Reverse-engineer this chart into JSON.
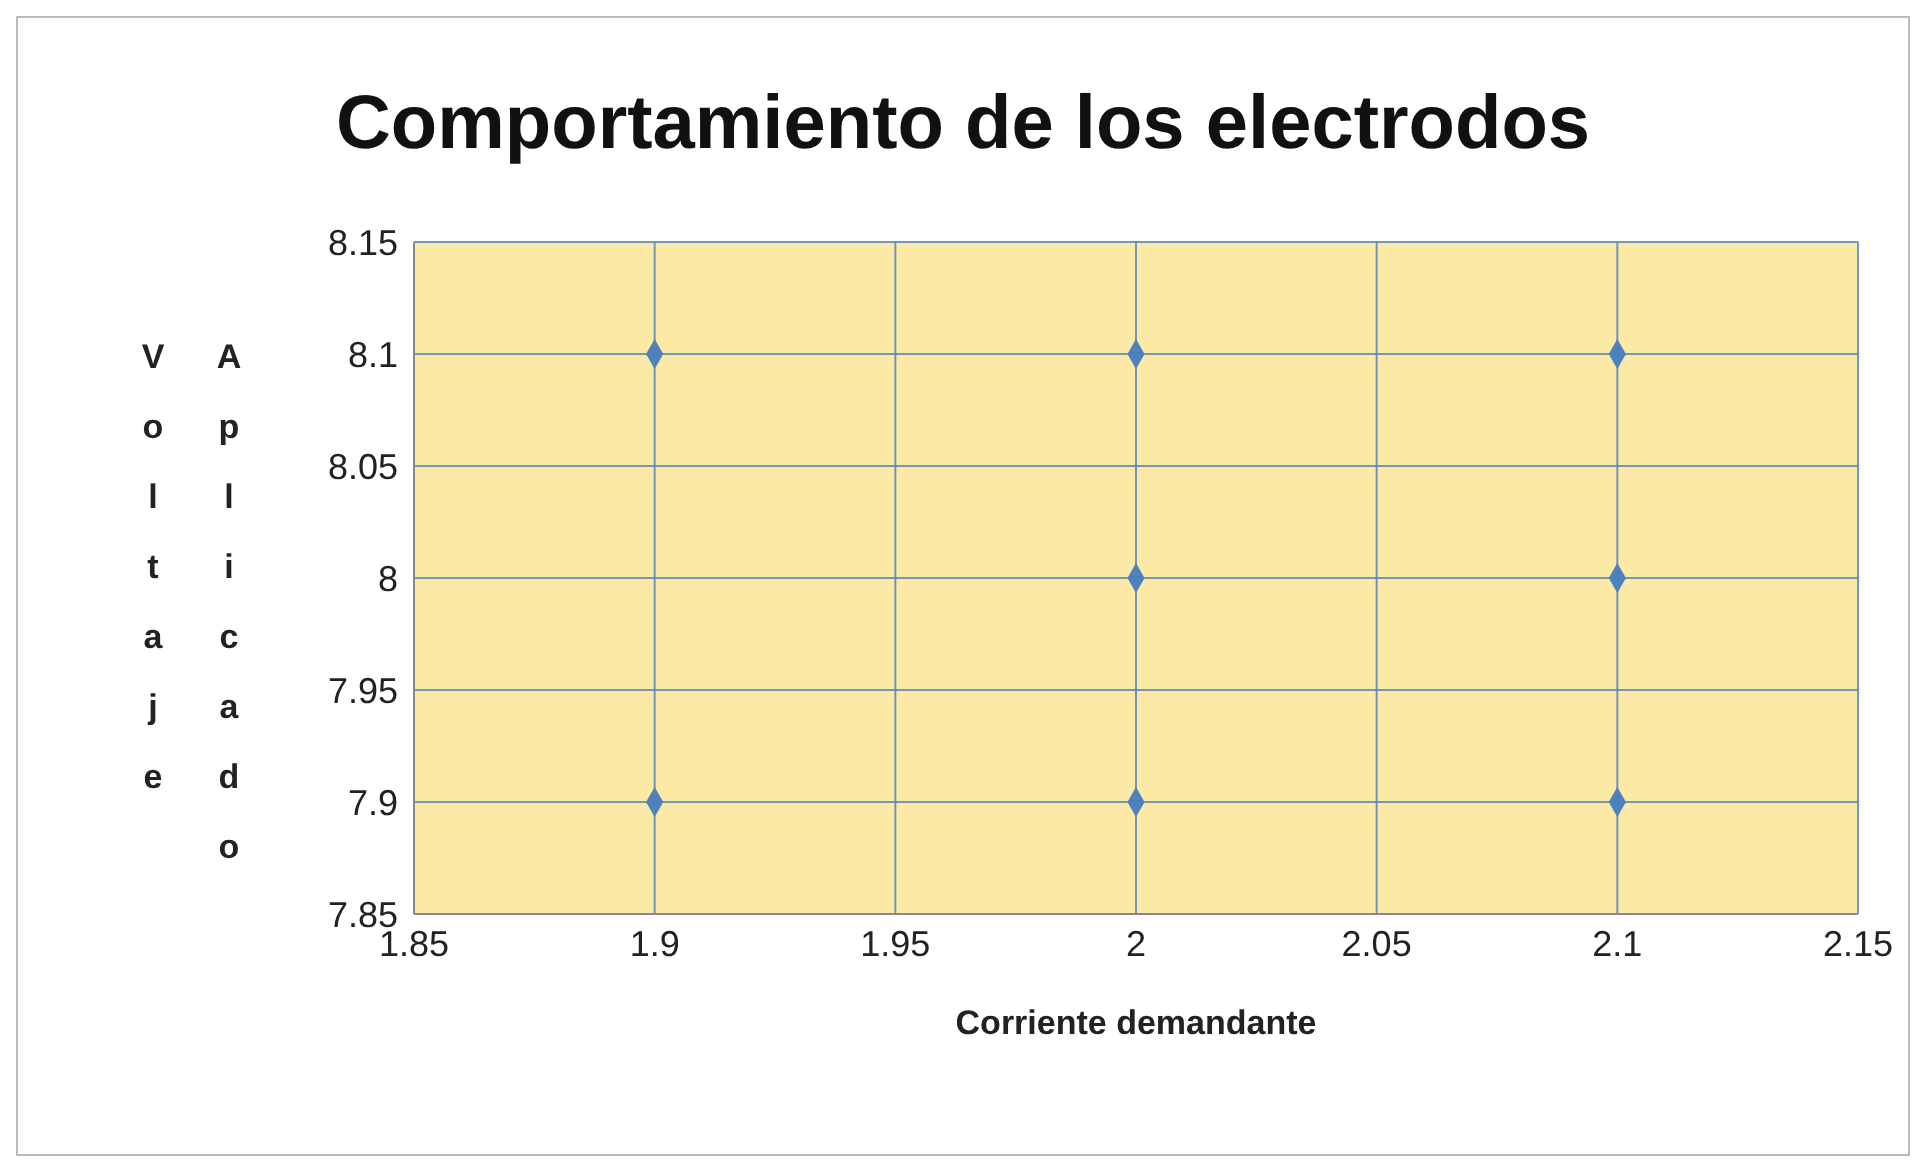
{
  "chart_data": {
    "type": "scatter",
    "title": "Comportamiento de los electrodos",
    "xlabel": "Corriente demandante",
    "ylabel": "Voltaje Aplicado",
    "x": [
      1.9,
      1.9,
      2,
      2,
      2,
      2.1,
      2.1,
      2.1
    ],
    "series": [
      {
        "color": "#4f81bd",
        "values": [
          8.1,
          7.9,
          8.1,
          8,
          7.9,
          8.1,
          8,
          7.9
        ]
      }
    ],
    "xlim": [
      1.85,
      2.15
    ],
    "xticks": [
      1.85,
      1.9,
      1.95,
      2,
      2.05,
      2.1,
      2.15
    ],
    "ylim": [
      7.85,
      8.15
    ],
    "yticks": [
      7.85,
      7.9,
      7.95,
      8,
      8.05,
      8.1,
      8.15
    ],
    "grid": true,
    "marker": "diamond",
    "legend": false
  }
}
